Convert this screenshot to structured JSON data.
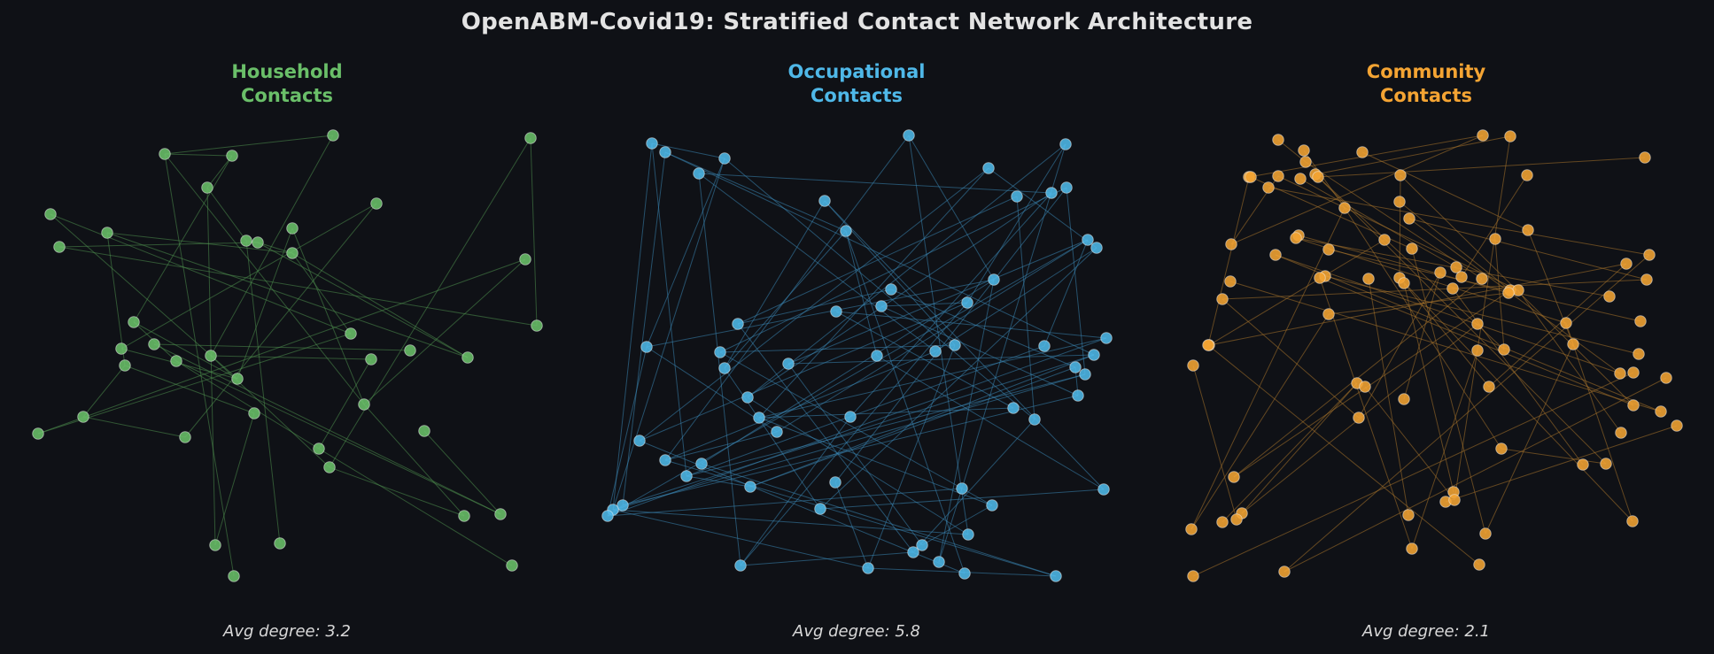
{
  "title": "OpenABM-Covid19: Stratified Contact Network Architecture",
  "panels": [
    {
      "key": "household",
      "title_line1": "Household",
      "title_line2": "Contacts",
      "caption": "Avg degree: 3.2",
      "color": "#6abf69",
      "edge_color": "#4f8f4f"
    },
    {
      "key": "occupational",
      "title_line1": "Occupational",
      "title_line2": "Contacts",
      "caption": "Avg degree: 5.8",
      "color": "#4fb8e8",
      "edge_color": "#3a86b4"
    },
    {
      "key": "community",
      "title_line1": "Community",
      "title_line2": "Contacts",
      "caption": "Avg degree: 2.1",
      "color": "#f4a433",
      "edge_color": "#a9742c"
    }
  ]
}
